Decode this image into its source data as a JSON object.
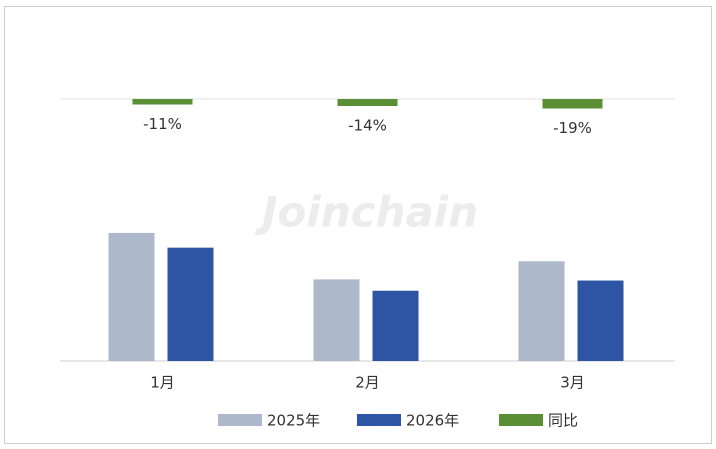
{
  "chart_data": {
    "type": "bar",
    "watermark": "Joinchain",
    "categories": [
      "1月",
      "2月",
      "3月"
    ],
    "series": [
      {
        "name": "2025年",
        "color": "#adb9ca",
        "values": [
          113,
          72,
          88
        ]
      },
      {
        "name": "2026年",
        "color": "#2e54a4",
        "values": [
          100,
          62,
          71
        ]
      },
      {
        "name": "同比",
        "color": "#5a8f35",
        "axis": "y2",
        "values": [
          -11,
          -14,
          -19
        ],
        "value_labels": [
          "-11%",
          "-14%",
          "-19%"
        ]
      }
    ],
    "ylim": [
      0,
      120
    ],
    "y2lim": [
      -20,
      0
    ],
    "legend": "bottom"
  }
}
